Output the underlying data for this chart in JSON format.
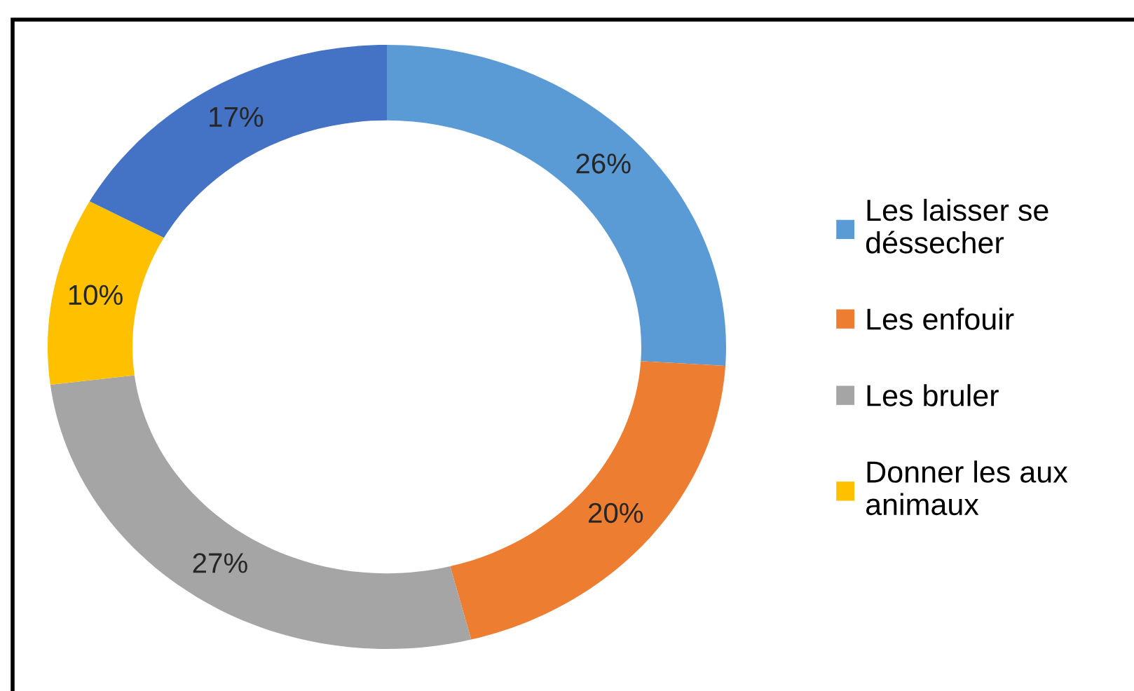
{
  "chart_data": {
    "type": "donut",
    "categories": [
      "Les laisser se\ndéssecher",
      "Les enfouir",
      "Les bruler",
      "Donner les aux\nanimaux",
      null
    ],
    "values": [
      26,
      20,
      27,
      10,
      17
    ],
    "colors": [
      "#5b9bd5",
      "#ed7d31",
      "#a5a5a5",
      "#ffc000",
      "#4472c4"
    ],
    "value_labels": [
      "26%",
      "20%",
      "27%",
      "10%",
      "17%"
    ],
    "legend": "right"
  }
}
